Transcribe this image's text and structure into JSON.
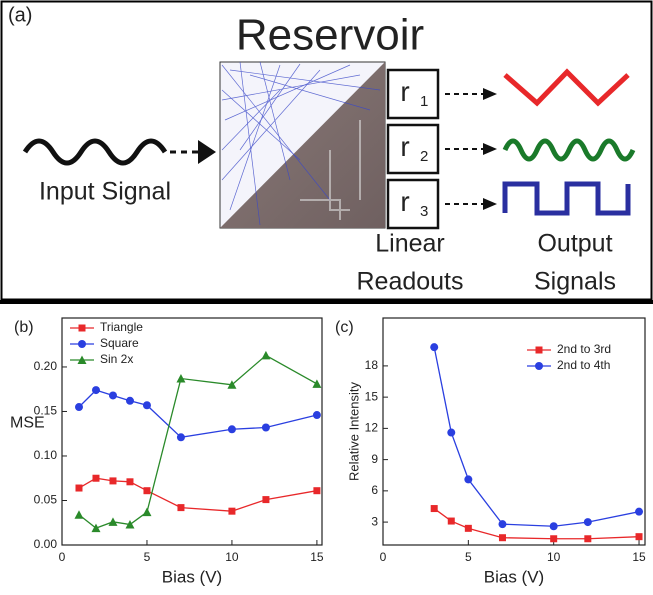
{
  "diagram": {
    "label": "(a)",
    "title": "Reservoir",
    "input": "Input Signal",
    "readouts": [
      {
        "base": "r",
        "sub": "1"
      },
      {
        "base": "r",
        "sub": "2"
      },
      {
        "base": "r",
        "sub": "3"
      }
    ],
    "readout_caption": [
      "Linear",
      "Readouts"
    ],
    "output_caption": [
      "Output",
      "Signals"
    ]
  },
  "chart_data": [
    {
      "type": "line",
      "panel_label": "(b)",
      "xlabel": "Bias (V)",
      "ylabel": "MSE",
      "x": [
        1,
        2,
        3,
        4,
        5,
        7,
        10,
        12,
        15
      ],
      "xlim": [
        0,
        15.3
      ],
      "xticks": [
        0,
        5,
        10,
        15
      ],
      "ylim": [
        0,
        0.255
      ],
      "yticks": [
        {
          "value": 0,
          "label": "0.00"
        },
        {
          "value": 0.05,
          "label": "0.05"
        },
        {
          "value": 0.1,
          "label": "0.10"
        },
        {
          "value": 0.15,
          "label": "0.15"
        },
        {
          "value": 0.2,
          "label": "0.20"
        }
      ],
      "legend": "upper left",
      "series": [
        {
          "name": "Triangle",
          "color": "#e8282a",
          "marker": "square",
          "values": [
            0.064,
            0.075,
            0.072,
            0.071,
            0.061,
            0.042,
            0.038,
            0.051,
            0.061
          ]
        },
        {
          "name": "Square",
          "color": "#2a3fe0",
          "marker": "circle",
          "values": [
            0.155,
            0.174,
            0.168,
            0.162,
            0.157,
            0.121,
            0.13,
            0.132,
            0.146
          ]
        },
        {
          "name": "Sin 2x",
          "color": "#2a8a2a",
          "marker": "triangle",
          "values": [
            0.034,
            0.019,
            0.026,
            0.023,
            0.037,
            0.187,
            0.18,
            0.213,
            0.181
          ]
        }
      ]
    },
    {
      "type": "line",
      "panel_label": "(c)",
      "xlabel": "Bias (V)",
      "ylabel": "Relative Intensity",
      "x": [
        3,
        4,
        5,
        7,
        10,
        12,
        15
      ],
      "xlim": [
        0,
        15.35
      ],
      "xticks": [
        0,
        5,
        10,
        15
      ],
      "ylim": [
        0.8,
        22.6
      ],
      "yticks": [
        3,
        6,
        9,
        12,
        15,
        18
      ],
      "legend": "upper right",
      "series": [
        {
          "name": "2nd to 3rd",
          "color": "#e8282a",
          "marker": "square",
          "values": [
            4.3,
            3.1,
            2.4,
            1.5,
            1.4,
            1.4,
            1.6
          ]
        },
        {
          "name": "2nd to 4th",
          "color": "#2a3fe0",
          "marker": "circle",
          "values": [
            19.8,
            11.6,
            7.1,
            2.8,
            2.6,
            3.0,
            4.0
          ]
        }
      ]
    }
  ]
}
